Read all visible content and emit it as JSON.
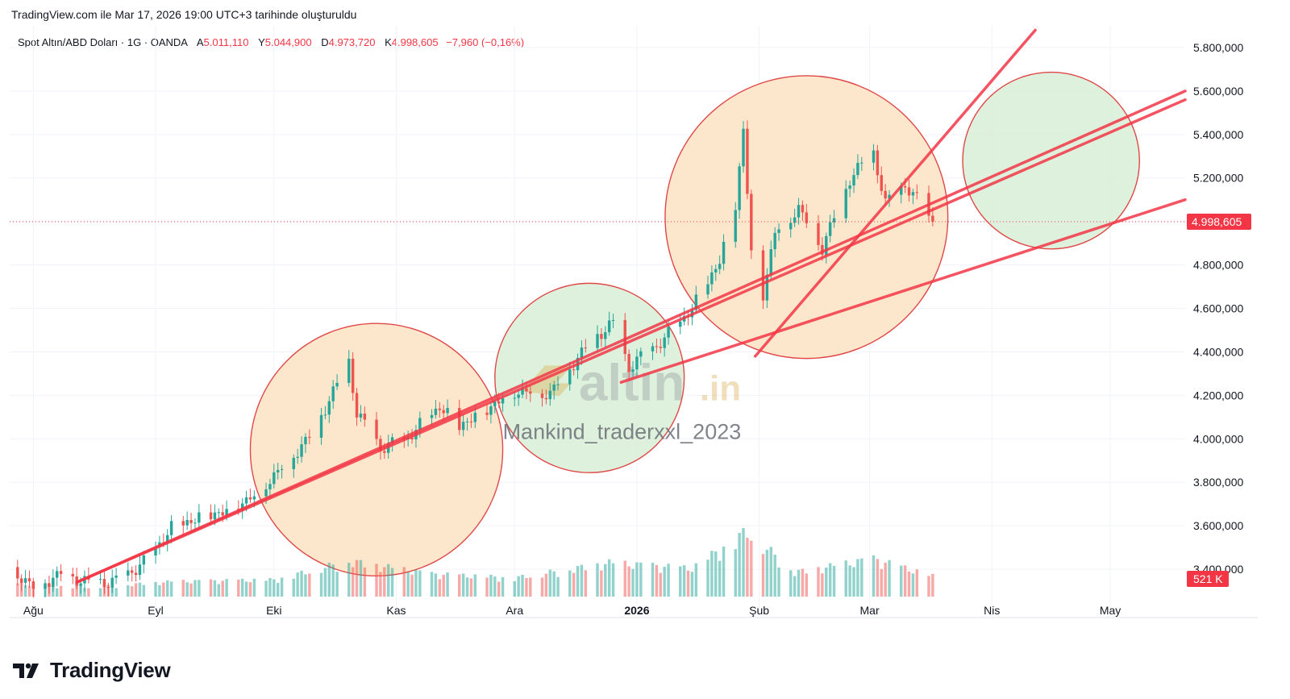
{
  "caption": "TradingView.com ile Mar 17, 2026 19:00 UTC+3 tarihinde oluşturuldu",
  "legend": {
    "symbol": "Spot Altın/ABD Doları · 1G · OANDA",
    "open_label": "A",
    "open": "5.011,110",
    "high_label": "Y",
    "high": "5.044,900",
    "low_label": "D",
    "low": "4.973,720",
    "close_label": "K",
    "close": "4.998,605",
    "change": "−7,960 (−0,16%)"
  },
  "brand": {
    "name": "TradingView"
  },
  "watermark": {
    "logo_text": "altin",
    "logo_suffix": ".in",
    "author": "Mankind_traderxxl_2023"
  },
  "colors": {
    "up": "#26a69a",
    "down": "#ef5350",
    "line": "#f23645",
    "orange_zone": "#fde3c3",
    "green_zone": "#d8eed7",
    "price_tag": "#f23645"
  },
  "chart_data": {
    "type": "candlestick",
    "title": "Spot Altın/ABD Doları · 1G · OANDA",
    "y_axis": {
      "ylim": [
        3200,
        5900
      ],
      "ticks": [
        3400,
        3600,
        3800,
        4000,
        4200,
        4400,
        4600,
        4800,
        5000,
        5200,
        5400,
        5600,
        5800
      ],
      "tick_labels": [
        "3.400,000",
        "3.600,000",
        "3.800,000",
        "4.000,000",
        "4.200,000",
        "4.400,000",
        "4.600,000",
        "4.800,000",
        "5.000,000",
        "5.200,000",
        "5.400,000",
        "5.600,000",
        "5.800,000"
      ]
    },
    "x_axis": {
      "labels": [
        "Ağu",
        "Eyl",
        "Eki",
        "Kas",
        "Ara",
        "2026",
        "Şub",
        "Mar",
        "Nis",
        "May"
      ],
      "label_dates": [
        "2025-08-01",
        "2025-09-01",
        "2025-10-01",
        "2025-11-01",
        "2025-12-01",
        "2026-01-01",
        "2026-02-01",
        "2026-03-01",
        "2026-04-01",
        "2026-05-01"
      ],
      "range": [
        "2025-07-26",
        "2026-05-20"
      ]
    },
    "last_price": {
      "value": 4998.605,
      "label": "4.998,605"
    },
    "volume_tag": "521 K",
    "price_path": [
      [
        "2025-07-26",
        3410
      ],
      [
        "2025-08-01",
        3320
      ],
      [
        "2025-08-08",
        3380
      ],
      [
        "2025-08-15",
        3340
      ],
      [
        "2025-08-22",
        3345
      ],
      [
        "2025-08-29",
        3430
      ],
      [
        "2025-09-05",
        3590
      ],
      [
        "2025-09-12",
        3640
      ],
      [
        "2025-09-19",
        3670
      ],
      [
        "2025-09-26",
        3740
      ],
      [
        "2025-10-03",
        3870
      ],
      [
        "2025-10-10",
        4010
      ],
      [
        "2025-10-17",
        4250
      ],
      [
        "2025-10-20",
        4360
      ],
      [
        "2025-10-22",
        4120
      ],
      [
        "2025-10-28",
        3960
      ],
      [
        "2025-11-03",
        3990
      ],
      [
        "2025-11-12",
        4150
      ],
      [
        "2025-11-17",
        4060
      ],
      [
        "2025-11-24",
        4140
      ],
      [
        "2025-12-01",
        4220
      ],
      [
        "2025-12-10",
        4210
      ],
      [
        "2025-12-15",
        4330
      ],
      [
        "2025-12-22",
        4480
      ],
      [
        "2025-12-26",
        4530
      ],
      [
        "2025-12-30",
        4330
      ],
      [
        "2026-01-08",
        4460
      ],
      [
        "2026-01-15",
        4600
      ],
      [
        "2026-01-22",
        4820
      ],
      [
        "2026-01-26",
        5080
      ],
      [
        "2026-01-28",
        5420
      ],
      [
        "2026-01-30",
        4860
      ],
      [
        "2026-02-02",
        4670
      ],
      [
        "2026-02-05",
        4950
      ],
      [
        "2026-02-11",
        5060
      ],
      [
        "2026-02-17",
        4880
      ],
      [
        "2026-02-24",
        5200
      ],
      [
        "2026-03-02",
        5320
      ],
      [
        "2026-03-05",
        5080
      ],
      [
        "2026-03-10",
        5170
      ],
      [
        "2026-03-17",
        4998.605
      ]
    ],
    "volume_path": [
      [
        "2025-07-26",
        0.35
      ],
      [
        "2025-08-15",
        0.25
      ],
      [
        "2025-09-05",
        0.4
      ],
      [
        "2025-10-01",
        0.45
      ],
      [
        "2025-10-20",
        0.95
      ],
      [
        "2025-11-10",
        0.6
      ],
      [
        "2025-12-01",
        0.5
      ],
      [
        "2025-12-25",
        0.9
      ],
      [
        "2026-01-15",
        0.75
      ],
      [
        "2026-01-29",
        1.75
      ],
      [
        "2026-02-10",
        0.65
      ],
      [
        "2026-03-02",
        1.0
      ],
      [
        "2026-03-17",
        0.55
      ]
    ],
    "trendlines": [
      {
        "from": [
          "2025-08-12",
          3340
        ],
        "to": [
          "2026-05-20",
          5600
        ]
      },
      {
        "from": [
          "2025-08-12",
          3340
        ],
        "to": [
          "2026-05-20",
          5560
        ]
      },
      {
        "from": [
          "2025-12-28",
          4260
        ],
        "to": [
          "2026-05-20",
          5100
        ]
      },
      {
        "from": [
          "2026-01-31",
          4380
        ],
        "to": [
          "2026-04-12",
          5880
        ]
      }
    ],
    "zones": [
      {
        "color": "orange",
        "center": [
          "2025-10-27",
          3950
        ]
      },
      {
        "color": "green",
        "center": [
          "2025-12-20",
          4280
        ]
      },
      {
        "color": "orange",
        "center": [
          "2026-02-13",
          5020
        ]
      },
      {
        "color": "green",
        "center": [
          "2026-04-16",
          5280
        ]
      }
    ]
  }
}
